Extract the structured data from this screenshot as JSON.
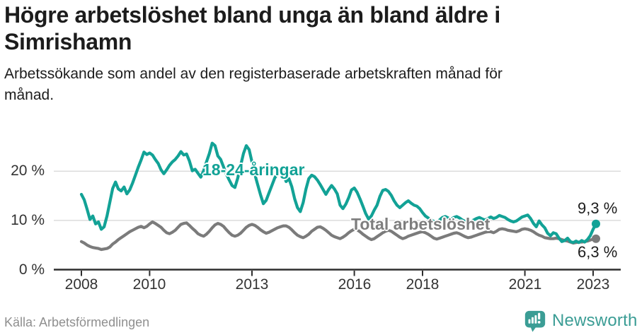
{
  "header": {
    "title": "Högre arbetslöshet bland unga än bland äldre i Simrishamn",
    "subtitle": "Arbetssökande som andel av den registerbaserade arbetskraften månad för månad."
  },
  "chart_data": {
    "type": "line",
    "title": "Högre arbetslöshet bland unga än bland äldre i Simrishamn",
    "subtitle": "Arbetssökande som andel av den registerbaserade arbetskraften månad för månad.",
    "x_unit": "month",
    "x_start": "2008-01",
    "x_end": "2023-02",
    "ylim": [
      0,
      27
    ],
    "grid": "horizontal",
    "legend_position": "inline-labels",
    "y_ticks": [
      {
        "value": 0,
        "label": "0 %"
      },
      {
        "value": 10,
        "label": "10 %"
      },
      {
        "value": 20,
        "label": "20 %"
      }
    ],
    "x_ticks": [
      {
        "year": 2008,
        "label": "2008"
      },
      {
        "year": 2010,
        "label": "2010"
      },
      {
        "year": 2013,
        "label": "2013"
      },
      {
        "year": 2016,
        "label": "2016"
      },
      {
        "year": 2018,
        "label": "2018"
      },
      {
        "year": 2021,
        "label": "2021"
      },
      {
        "year": 2023,
        "label": "2023"
      }
    ],
    "series": [
      {
        "name": "18-24-åringar",
        "color": "#12a296",
        "end_value_label": "9,3 %",
        "end_value": 9.3,
        "values": [
          15.3,
          14.2,
          12.3,
          10.2,
          10.9,
          9.3,
          9.7,
          8.2,
          8.7,
          10.9,
          13.7,
          16.5,
          17.8,
          16.4,
          16.0,
          16.8,
          15.4,
          16.2,
          17.6,
          19.2,
          20.8,
          22.3,
          23.9,
          23.4,
          23.7,
          23.3,
          22.4,
          21.6,
          20.3,
          19.5,
          20.3,
          21.2,
          21.9,
          22.4,
          23.1,
          24.0,
          23.3,
          23.5,
          22.1,
          20.1,
          20.4,
          19.6,
          18.8,
          20.1,
          21.9,
          23.6,
          25.7,
          25.2,
          23.1,
          22.4,
          20.9,
          19.4,
          18.2,
          17.1,
          16.7,
          18.6,
          21.1,
          23.6,
          25.2,
          24.4,
          21.9,
          19.4,
          17.3,
          15.2,
          13.4,
          14.1,
          15.6,
          17.1,
          18.6,
          19.6,
          20.2,
          19.7,
          17.9,
          18.5,
          16.9,
          14.4,
          12.6,
          11.8,
          13.6,
          16.4,
          18.5,
          19.2,
          18.9,
          18.2,
          17.3,
          16.3,
          15.3,
          16.3,
          17.1,
          16.4,
          15.4,
          13.1,
          12.4,
          13.3,
          14.6,
          16.2,
          16.6,
          15.7,
          14.4,
          12.9,
          11.4,
          10.3,
          10.9,
          12.1,
          13.1,
          14.9,
          16.1,
          16.3,
          15.9,
          15.1,
          14.0,
          13.1,
          12.6,
          13.1,
          13.6,
          14.0,
          13.5,
          13.1,
          12.9,
          12.4,
          11.6,
          10.9,
          10.5,
          10.1,
          9.8,
          9.6,
          10.1,
          10.6,
          10.8,
          10.5,
          10.2,
          10.6,
          10.8,
          10.5,
          10.1,
          9.8,
          9.5,
          9.8,
          10.1,
          10.4,
          10.6,
          10.3,
          10.1,
          10.4,
          10.7,
          10.4,
          10.6,
          11.0,
          10.8,
          10.6,
          10.2,
          9.9,
          9.7,
          9.9,
          10.3,
          10.7,
          10.9,
          11.1,
          10.4,
          9.4,
          8.7,
          9.9,
          9.1,
          8.5,
          7.4,
          6.9,
          7.5,
          7.3,
          6.4,
          5.7,
          5.9,
          6.4,
          5.7,
          5.5,
          5.8,
          5.5,
          5.9,
          5.6,
          6.1,
          6.9,
          8.2,
          9.3
        ]
      },
      {
        "name": "Total arbetslöshet",
        "color": "#7b7b7b",
        "end_value_label": "6,3 %",
        "end_value": 6.3,
        "values": [
          5.7,
          5.4,
          5.0,
          4.7,
          4.5,
          4.4,
          4.3,
          4.1,
          4.2,
          4.3,
          4.6,
          5.2,
          5.6,
          6.1,
          6.5,
          6.9,
          7.3,
          7.7,
          8.0,
          8.3,
          8.6,
          8.8,
          8.5,
          8.8,
          9.3,
          9.7,
          9.4,
          9.0,
          8.6,
          8.0,
          7.5,
          7.3,
          7.6,
          8.0,
          8.6,
          9.2,
          9.4,
          9.5,
          9.0,
          8.4,
          7.9,
          7.3,
          7.0,
          6.8,
          7.2,
          7.8,
          8.5,
          9.1,
          9.4,
          9.2,
          8.8,
          8.1,
          7.5,
          7.0,
          6.8,
          7.0,
          7.4,
          8.0,
          8.6,
          9.0,
          9.2,
          9.0,
          8.6,
          8.1,
          7.7,
          7.4,
          7.6,
          7.9,
          8.2,
          8.5,
          8.7,
          8.9,
          8.9,
          8.6,
          8.1,
          7.5,
          7.0,
          6.7,
          6.5,
          6.8,
          7.2,
          7.8,
          8.2,
          8.6,
          8.7,
          8.4,
          8.0,
          7.5,
          7.0,
          6.7,
          6.5,
          6.3,
          6.6,
          7.0,
          7.5,
          7.9,
          8.2,
          8.1,
          7.7,
          7.2,
          6.8,
          6.4,
          6.1,
          6.3,
          6.7,
          7.1,
          7.5,
          7.8,
          8.0,
          7.8,
          7.4,
          7.0,
          6.6,
          6.3,
          6.5,
          6.8,
          7.0,
          7.2,
          7.4,
          7.6,
          7.7,
          7.5,
          7.2,
          6.8,
          6.4,
          6.2,
          6.4,
          6.6,
          6.8,
          7.0,
          7.2,
          7.4,
          7.5,
          7.3,
          7.0,
          6.7,
          6.5,
          6.6,
          6.8,
          7.0,
          7.2,
          7.4,
          7.6,
          7.7,
          7.7,
          7.5,
          7.8,
          8.2,
          8.3,
          8.2,
          8.0,
          7.9,
          7.8,
          7.7,
          7.9,
          8.2,
          8.3,
          8.2,
          8.0,
          7.7,
          7.3,
          7.0,
          6.8,
          6.5,
          6.4,
          6.3,
          6.3,
          6.4,
          6.3,
          6.1,
          5.9,
          5.8,
          5.6,
          5.4,
          5.5,
          5.6,
          5.6,
          5.7,
          5.8,
          6.0,
          6.2,
          6.3
        ]
      }
    ],
    "colors": {
      "youth_line": "#12a296",
      "total_line": "#7b7b7b",
      "gridline": "#dcdcdc",
      "axis": "#2e2e2e",
      "brand_teal": "#3b9d95"
    }
  },
  "footer": {
    "source": "Källa: Arbetsförmedlingen",
    "brand": "Newsworthy"
  }
}
